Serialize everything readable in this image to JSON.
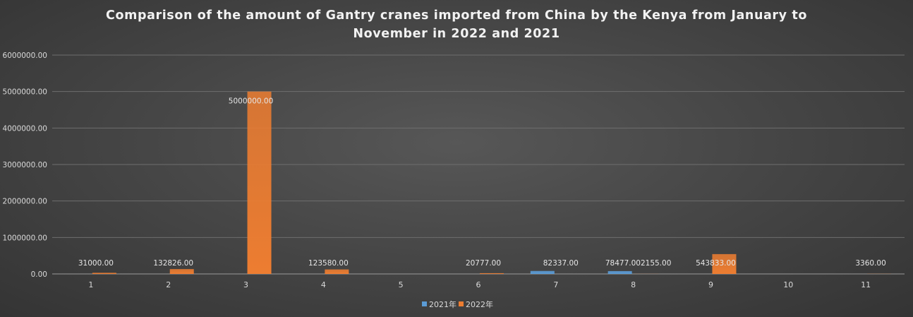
{
  "chart_data": {
    "type": "bar",
    "title_lines": [
      "Comparison of the amount of Gantry cranes imported from China by the Kenya from January to",
      "November in 2022 and 2021"
    ],
    "categories": [
      "1",
      "2",
      "3",
      "4",
      "5",
      "6",
      "7",
      "8",
      "9",
      "10",
      "11"
    ],
    "series": [
      {
        "name": "2021年",
        "color": "#5b9bd5",
        "values": [
          null,
          null,
          null,
          null,
          null,
          null,
          82337.0,
          78477.0,
          null,
          null,
          null
        ]
      },
      {
        "name": "2022年",
        "color": "#ed7d31",
        "values": [
          31000.0,
          132826.0,
          5000000.0,
          123580.0,
          null,
          20777.0,
          null,
          2155.0,
          543833.0,
          null,
          3360.0
        ]
      }
    ],
    "data_labels": [
      {
        "category": "1",
        "text": "31000.00"
      },
      {
        "category": "2",
        "text": "132826.00"
      },
      {
        "category": "3",
        "text": "5000000.00"
      },
      {
        "category": "4",
        "text": "123580.00"
      },
      {
        "category": "6",
        "text": "20777.00"
      },
      {
        "category": "7",
        "text": "82337.00"
      },
      {
        "category": "8",
        "text": "78477.002155.00"
      },
      {
        "category": "9",
        "text": "543833.00"
      },
      {
        "category": "11",
        "text": "3360.00"
      }
    ],
    "y_ticks": [
      "0.00",
      "1000000.00",
      "2000000.00",
      "3000000.00",
      "4000000.00",
      "5000000.00",
      "6000000.00"
    ],
    "ylim": [
      0,
      6000000
    ],
    "grid": true,
    "legend_position": "bottom"
  }
}
